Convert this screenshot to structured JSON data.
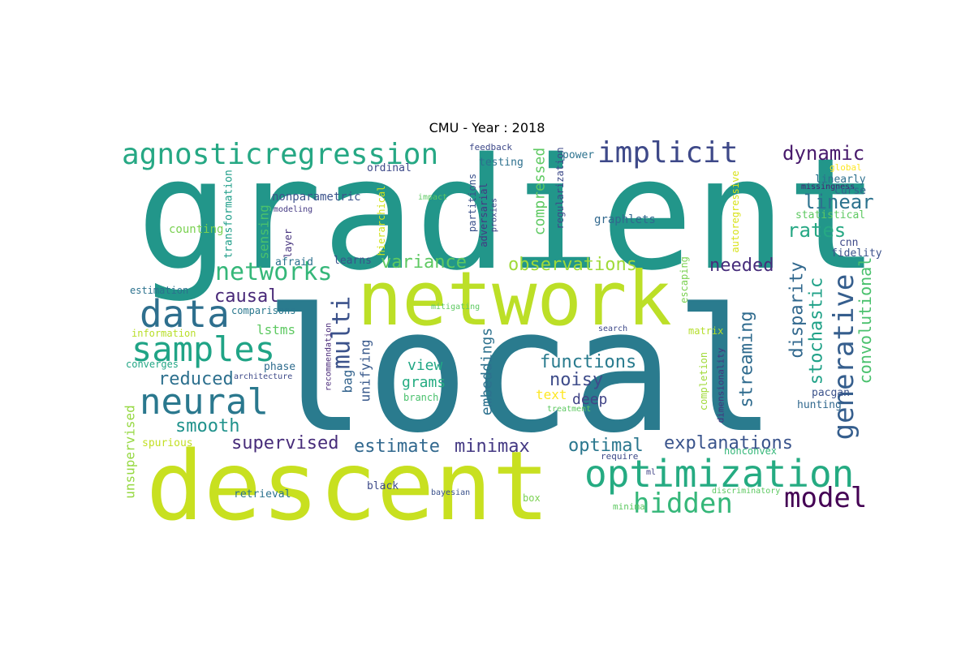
{
  "title": "CMU - Year : 2018",
  "words": [
    {
      "text": "gradient",
      "color": "#22968a"
    },
    {
      "text": "local",
      "color": "#2a7b8e"
    },
    {
      "text": "network",
      "color": "#bcdf27"
    },
    {
      "text": "descent",
      "color": "#c8e020"
    },
    {
      "text": "agnosticregression",
      "color": "#26a884"
    },
    {
      "text": "implicit",
      "color": "#3e4989"
    },
    {
      "text": "networks",
      "color": "#35b779"
    },
    {
      "text": "data",
      "color": "#2e6f8e"
    },
    {
      "text": "samples",
      "color": "#20a486"
    },
    {
      "text": "neural",
      "color": "#2a788e"
    },
    {
      "text": "optimization",
      "color": "#25ab82"
    },
    {
      "text": "hidden",
      "color": "#35b779"
    },
    {
      "text": "model",
      "color": "#440154"
    },
    {
      "text": "generative",
      "color": "#355e8d"
    },
    {
      "text": "dynamic",
      "color": "#481a6c"
    },
    {
      "text": "linear",
      "color": "#2c728e"
    },
    {
      "text": "rates",
      "color": "#26a884"
    },
    {
      "text": "needed",
      "color": "#472d7b"
    },
    {
      "text": "observations",
      "color": "#a0da39"
    },
    {
      "text": "variance",
      "color": "#5ec962"
    },
    {
      "text": "causal",
      "color": "#482878"
    },
    {
      "text": "multi",
      "color": "#3b528b"
    },
    {
      "text": "reduced",
      "color": "#2d708e"
    },
    {
      "text": "smooth",
      "color": "#20928c"
    },
    {
      "text": "supervised",
      "color": "#472c7a"
    },
    {
      "text": "estimate",
      "color": "#31688e"
    },
    {
      "text": "minimax",
      "color": "#443983"
    },
    {
      "text": "optimal",
      "color": "#2a778e"
    },
    {
      "text": "explanations",
      "color": "#3a548c"
    },
    {
      "text": "functions",
      "color": "#297b8e"
    },
    {
      "text": "noisy",
      "color": "#3e4c8a"
    },
    {
      "text": "disparity",
      "color": "#31688e"
    },
    {
      "text": "stochastic",
      "color": "#1fa187"
    },
    {
      "text": "convolutional",
      "color": "#4ac16d"
    },
    {
      "text": "streaming",
      "color": "#2f6b8e"
    },
    {
      "text": "embeddings",
      "color": "#2d718e"
    },
    {
      "text": "compressed",
      "color": "#5ec962"
    },
    {
      "text": "view",
      "color": "#22a785"
    },
    {
      "text": "grams",
      "color": "#25ac82"
    },
    {
      "text": "deep",
      "color": "#414487"
    },
    {
      "text": "text",
      "color": "#fde725"
    },
    {
      "text": "unifying",
      "color": "#38598c"
    },
    {
      "text": "bag",
      "color": "#33638d"
    },
    {
      "text": "lstms",
      "color": "#5ec962"
    },
    {
      "text": "sensing",
      "color": "#4ac16d"
    },
    {
      "text": "nonparametric",
      "color": "#3b528b"
    },
    {
      "text": "transformation",
      "color": "#1f9e89"
    },
    {
      "text": "counting",
      "color": "#7ad151"
    },
    {
      "text": "layer",
      "color": "#46337e"
    },
    {
      "text": "afraid",
      "color": "#2c728e"
    },
    {
      "text": "learns",
      "color": "#3b528b"
    },
    {
      "text": "ordinal",
      "color": "#3e4989"
    },
    {
      "text": "hierarchical",
      "color": "#d2e21b"
    },
    {
      "text": "partitions",
      "color": "#3b528b"
    },
    {
      "text": "adversarial",
      "color": "#443983"
    },
    {
      "text": "proxies",
      "color": "#414487"
    },
    {
      "text": "impact",
      "color": "#5ec962"
    },
    {
      "text": "testing",
      "color": "#2d708e"
    },
    {
      "text": "feedback",
      "color": "#3e4989"
    },
    {
      "text": "power",
      "color": "#2c728e"
    },
    {
      "text": "regularization",
      "color": "#3e4a89"
    },
    {
      "text": "graphlets",
      "color": "#31688e"
    },
    {
      "text": "autoregressive",
      "color": "#d8e219"
    },
    {
      "text": "linearly",
      "color": "#2d708e"
    },
    {
      "text": "missingness",
      "color": "#482173"
    },
    {
      "text": "curse",
      "color": "#33638d"
    },
    {
      "text": "global",
      "color": "#fde725"
    },
    {
      "text": "statistical",
      "color": "#5ec962"
    },
    {
      "text": "cnn",
      "color": "#3e4989"
    },
    {
      "text": "fidelity",
      "color": "#3b528b"
    },
    {
      "text": "matrix",
      "color": "#b5de2b"
    },
    {
      "text": "escaping",
      "color": "#7ad151"
    },
    {
      "text": "completion",
      "color": "#a0da39"
    },
    {
      "text": "dimensionality",
      "color": "#46337e"
    },
    {
      "text": "pacgan",
      "color": "#3b528b"
    },
    {
      "text": "hunting",
      "color": "#31688e"
    },
    {
      "text": "nonconvex",
      "color": "#35b779"
    },
    {
      "text": "discriminatory",
      "color": "#5ec962"
    },
    {
      "text": "require",
      "color": "#3e4989"
    },
    {
      "text": "ml",
      "color": "#414487"
    },
    {
      "text": "minima",
      "color": "#5ec962"
    },
    {
      "text": "box",
      "color": "#7ad151"
    },
    {
      "text": "bayesian",
      "color": "#3b528b"
    },
    {
      "text": "black",
      "color": "#3e4a89"
    },
    {
      "text": "retrieval",
      "color": "#2c728e"
    },
    {
      "text": "unsupervised",
      "color": "#95d840"
    },
    {
      "text": "spurious",
      "color": "#c2df23"
    },
    {
      "text": "converges",
      "color": "#22a785"
    },
    {
      "text": "information",
      "color": "#b8de29"
    },
    {
      "text": "estimation",
      "color": "#2c728e"
    },
    {
      "text": "comparisons",
      "color": "#2a788e"
    },
    {
      "text": "phase",
      "color": "#2f6c8e"
    },
    {
      "text": "architecture",
      "color": "#3e4a89"
    },
    {
      "text": "modeling",
      "color": "#443983"
    },
    {
      "text": "mitigating",
      "color": "#5ec962"
    },
    {
      "text": "recommendation",
      "color": "#482878"
    },
    {
      "text": "branch",
      "color": "#4ac16d"
    },
    {
      "text": "treatment",
      "color": "#5ec962"
    },
    {
      "text": "search",
      "color": "#3e4989"
    }
  ]
}
